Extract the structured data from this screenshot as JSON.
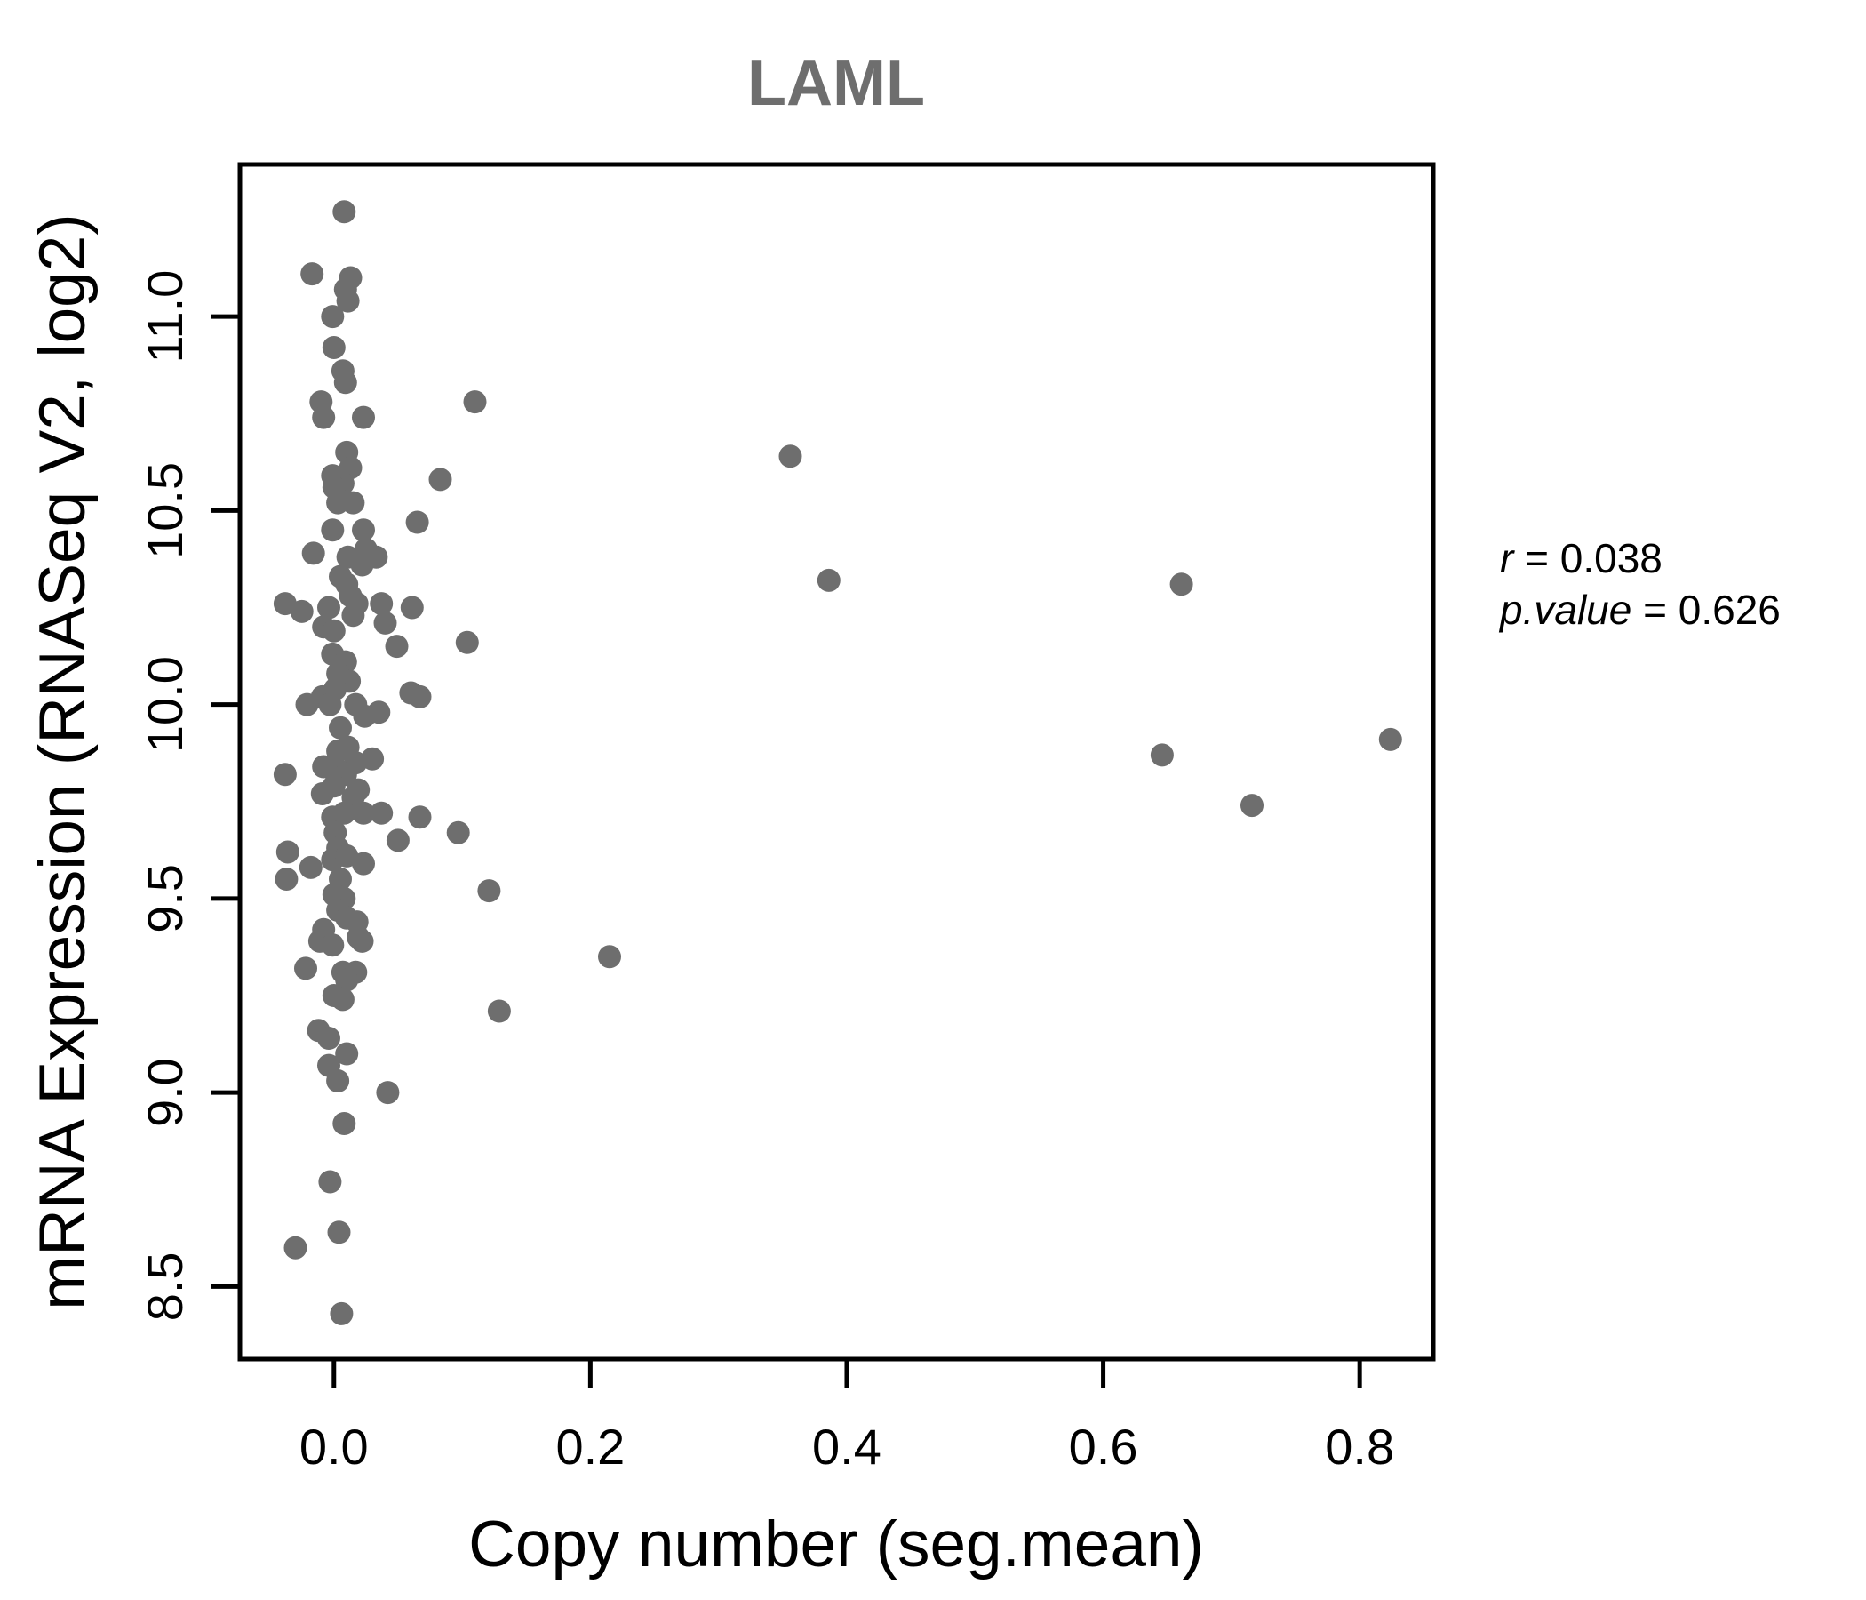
{
  "title": "LAML",
  "annotation": {
    "r_label": "r",
    "r_rest": " = 0.038",
    "p_label": "p.value",
    "p_rest": " = 0.626"
  },
  "chart_data": {
    "type": "scatter",
    "title": "LAML",
    "xlabel": "Copy number (seg.mean)",
    "ylabel": "mRNA Expression (RNASeq V2, log2)",
    "xlim": [
      -0.0733,
      0.8574
    ],
    "ylim": [
      8.313,
      11.392
    ],
    "x_ticks": [
      0.0,
      0.2,
      0.4,
      0.6,
      0.8
    ],
    "y_ticks": [
      8.5,
      9.0,
      9.5,
      10.0,
      10.5,
      11.0
    ],
    "grid": false,
    "legend": "none",
    "point_color": "#6e6e6e",
    "point_radius_px": 13,
    "stats": {
      "r": 0.038,
      "p_value": 0.626
    },
    "points": [
      [
        0.008,
        11.27
      ],
      [
        -0.017,
        11.11
      ],
      [
        0.013,
        11.1
      ],
      [
        0.009,
        11.07
      ],
      [
        0.011,
        11.04
      ],
      [
        -0.001,
        11.0
      ],
      [
        0.0,
        10.92
      ],
      [
        0.007,
        10.86
      ],
      [
        0.009,
        10.83
      ],
      [
        -0.01,
        10.78
      ],
      [
        -0.008,
        10.74
      ],
      [
        0.023,
        10.74
      ],
      [
        0.11,
        10.78
      ],
      [
        0.01,
        10.65
      ],
      [
        0.013,
        10.61
      ],
      [
        -0.001,
        10.59
      ],
      [
        0.007,
        10.57
      ],
      [
        0.0,
        10.56
      ],
      [
        0.003,
        10.52
      ],
      [
        0.015,
        10.52
      ],
      [
        0.083,
        10.58
      ],
      [
        0.065,
        10.47
      ],
      [
        -0.001,
        10.45
      ],
      [
        0.023,
        10.45
      ],
      [
        -0.016,
        10.39
      ],
      [
        0.011,
        10.38
      ],
      [
        0.025,
        10.4
      ],
      [
        0.033,
        10.38
      ],
      [
        0.022,
        10.36
      ],
      [
        0.005,
        10.33
      ],
      [
        0.01,
        10.31
      ],
      [
        0.013,
        10.28
      ],
      [
        -0.038,
        10.26
      ],
      [
        -0.025,
        10.24
      ],
      [
        -0.004,
        10.25
      ],
      [
        0.018,
        10.26
      ],
      [
        0.037,
        10.26
      ],
      [
        0.061,
        10.25
      ],
      [
        0.04,
        10.21
      ],
      [
        -0.008,
        10.2
      ],
      [
        0.0,
        10.19
      ],
      [
        0.015,
        10.23
      ],
      [
        0.049,
        10.15
      ],
      [
        0.104,
        10.16
      ],
      [
        -0.001,
        10.13
      ],
      [
        0.009,
        10.11
      ],
      [
        0.003,
        10.08
      ],
      [
        0.012,
        10.06
      ],
      [
        0.001,
        10.04
      ],
      [
        -0.009,
        10.02
      ],
      [
        0.06,
        10.03
      ],
      [
        0.067,
        10.02
      ],
      [
        -0.021,
        10.0
      ],
      [
        -0.003,
        10.0
      ],
      [
        0.017,
        10.0
      ],
      [
        0.035,
        9.98
      ],
      [
        0.024,
        9.97
      ],
      [
        0.005,
        9.94
      ],
      [
        0.011,
        9.89
      ],
      [
        0.003,
        9.88
      ],
      [
        0.03,
        9.86
      ],
      [
        0.017,
        9.85
      ],
      [
        -0.008,
        9.84
      ],
      [
        0.003,
        9.83
      ],
      [
        -0.038,
        9.82
      ],
      [
        0.009,
        9.82
      ],
      [
        0.0,
        9.79
      ],
      [
        0.019,
        9.78
      ],
      [
        -0.009,
        9.77
      ],
      [
        0.015,
        9.76
      ],
      [
        -0.001,
        9.71
      ],
      [
        0.008,
        9.72
      ],
      [
        0.023,
        9.72
      ],
      [
        0.037,
        9.72
      ],
      [
        0.067,
        9.71
      ],
      [
        0.097,
        9.67
      ],
      [
        0.001,
        9.67
      ],
      [
        0.05,
        9.65
      ],
      [
        0.003,
        9.63
      ],
      [
        -0.036,
        9.62
      ],
      [
        -0.018,
        9.58
      ],
      [
        -0.001,
        9.6
      ],
      [
        0.01,
        9.61
      ],
      [
        0.023,
        9.59
      ],
      [
        -0.037,
        9.55
      ],
      [
        0.005,
        9.55
      ],
      [
        0.121,
        9.52
      ],
      [
        0.0,
        9.51
      ],
      [
        0.008,
        9.5
      ],
      [
        0.003,
        9.47
      ],
      [
        0.01,
        9.45
      ],
      [
        0.018,
        9.44
      ],
      [
        -0.008,
        9.42
      ],
      [
        -0.011,
        9.39
      ],
      [
        -0.001,
        9.38
      ],
      [
        0.019,
        9.4
      ],
      [
        0.022,
        9.39
      ],
      [
        -0.022,
        9.32
      ],
      [
        0.007,
        9.31
      ],
      [
        0.017,
        9.31
      ],
      [
        0.01,
        9.29
      ],
      [
        0.215,
        9.35
      ],
      [
        0.0,
        9.25
      ],
      [
        0.007,
        9.24
      ],
      [
        0.129,
        9.21
      ],
      [
        -0.012,
        9.16
      ],
      [
        -0.004,
        9.14
      ],
      [
        0.01,
        9.1
      ],
      [
        -0.004,
        9.07
      ],
      [
        0.003,
        9.03
      ],
      [
        0.042,
        9.0
      ],
      [
        0.008,
        8.92
      ],
      [
        -0.003,
        8.77
      ],
      [
        0.004,
        8.64
      ],
      [
        -0.03,
        8.6
      ],
      [
        0.006,
        8.43
      ],
      [
        0.356,
        10.64
      ],
      [
        0.386,
        10.32
      ],
      [
        0.661,
        10.31
      ],
      [
        0.646,
        9.87
      ],
      [
        0.716,
        9.74
      ],
      [
        0.824,
        9.91
      ]
    ]
  }
}
